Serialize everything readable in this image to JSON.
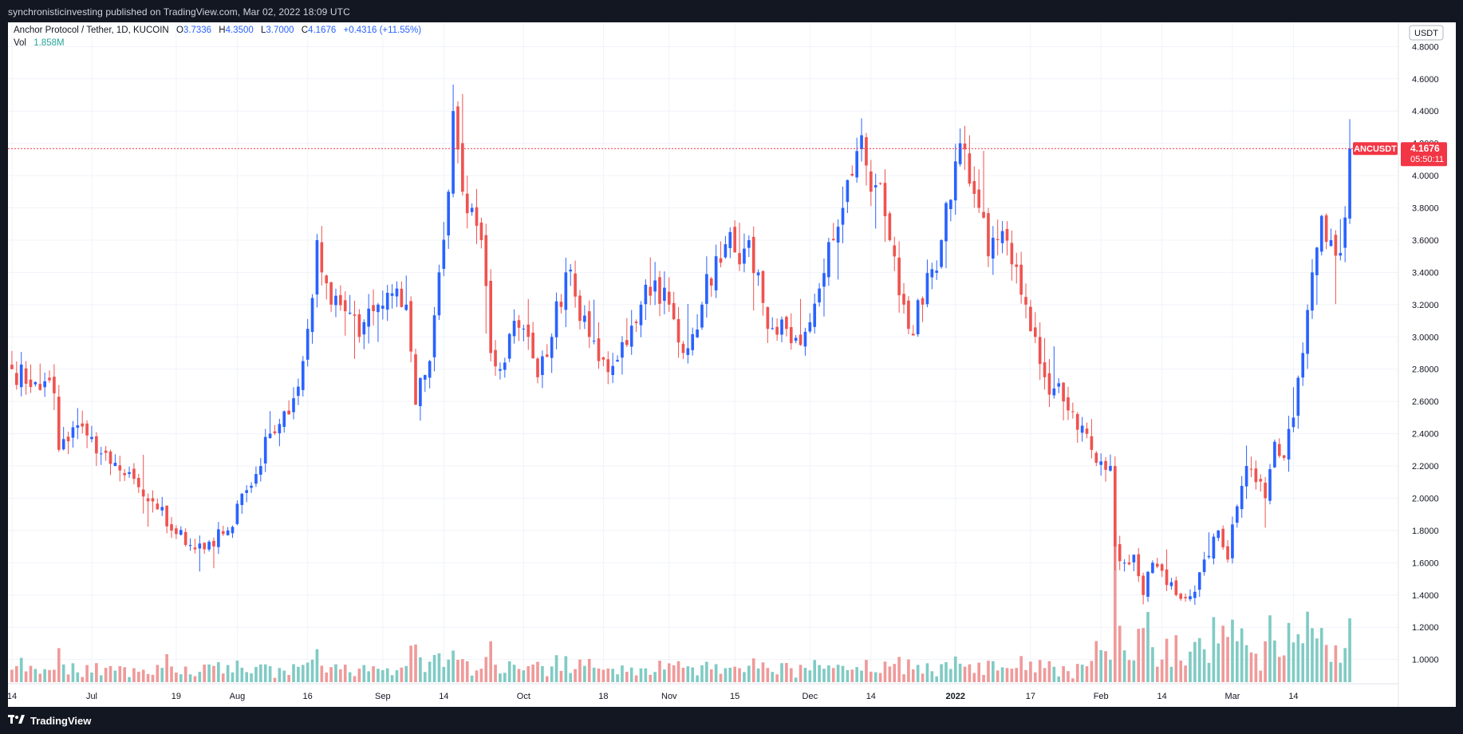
{
  "publisher_line": "synchronisticinvesting published on TradingView.com, Mar 02, 2022 18:09 UTC",
  "brand": "TradingView",
  "colors": {
    "up": "#2962ff",
    "down": "#ef5350",
    "vol_up": "#80cbc4",
    "vol_down": "#ef9a9a",
    "last_line": "#f23645",
    "legend_value": "#2962ff",
    "vol_value": "#26a69a"
  },
  "legend": {
    "symbol": "Anchor Protocol / Tether, 1D, KUCOIN",
    "open_label": "O",
    "open": "3.7336",
    "high_label": "H",
    "high": "4.3500",
    "low_label": "L",
    "low": "3.7000",
    "close_label": "C",
    "close": "4.1676",
    "change": "+0.4316 (+11.55%)",
    "vol_label": "Vol",
    "vol": "1.858M"
  },
  "axis": {
    "currency": "USDT"
  },
  "last_price": {
    "ticker": "ANCUSDT",
    "price": "4.1676",
    "countdown": "05:50:11"
  },
  "chart_data": {
    "type": "candlestick",
    "ticker": "ANCUSDT",
    "exchange": "KUCOIN",
    "interval": "1D",
    "price_axis": {
      "ylim": [
        0.85,
        4.95
      ],
      "ticks": [
        "1.0000",
        "1.2000",
        "1.4000",
        "1.6000",
        "1.8000",
        "2.0000",
        "2.2000",
        "2.4000",
        "2.6000",
        "2.8000",
        "3.0000",
        "3.2000",
        "3.4000",
        "3.6000",
        "3.8000",
        "4.0000",
        "4.2000",
        "4.4000",
        "4.6000",
        "4.8000"
      ]
    },
    "time_axis": {
      "labels": [
        {
          "day": 0,
          "text": "14"
        },
        {
          "day": 17,
          "text": "Jul"
        },
        {
          "day": 35,
          "text": "19"
        },
        {
          "day": 48,
          "text": "Aug"
        },
        {
          "day": 63,
          "text": "16"
        },
        {
          "day": 79,
          "text": "Sep"
        },
        {
          "day": 92,
          "text": "14"
        },
        {
          "day": 109,
          "text": "Oct"
        },
        {
          "day": 126,
          "text": "18"
        },
        {
          "day": 140,
          "text": "Nov"
        },
        {
          "day": 154,
          "text": "15"
        },
        {
          "day": 170,
          "text": "Dec"
        },
        {
          "day": 183,
          "text": "14"
        },
        {
          "day": 201,
          "text": "2022"
        },
        {
          "day": 217,
          "text": "17"
        },
        {
          "day": 232,
          "text": "Feb"
        },
        {
          "day": 245,
          "text": "14"
        },
        {
          "day": 260,
          "text": "Mar"
        },
        {
          "day": 273,
          "text": "14"
        }
      ]
    },
    "close_anchors": [
      [
        0,
        2.8
      ],
      [
        5,
        2.72
      ],
      [
        9,
        2.65
      ],
      [
        10,
        2.3
      ],
      [
        13,
        2.44
      ],
      [
        17,
        2.38
      ],
      [
        22,
        2.22
      ],
      [
        26,
        2.12
      ],
      [
        30,
        1.98
      ],
      [
        34,
        1.8
      ],
      [
        38,
        1.71
      ],
      [
        42,
        1.73
      ],
      [
        46,
        1.8
      ],
      [
        50,
        2.05
      ],
      [
        52,
        2.15
      ],
      [
        54,
        2.38
      ],
      [
        57,
        2.46
      ],
      [
        60,
        2.62
      ],
      [
        62,
        2.85
      ],
      [
        63,
        3.05
      ],
      [
        65,
        3.6
      ],
      [
        68,
        3.2
      ],
      [
        72,
        3.15
      ],
      [
        74,
        3.0
      ],
      [
        78,
        3.2
      ],
      [
        82,
        3.3
      ],
      [
        84,
        3.2
      ],
      [
        86,
        2.58
      ],
      [
        89,
        2.85
      ],
      [
        91,
        3.4
      ],
      [
        93,
        3.9
      ],
      [
        94,
        4.4
      ],
      [
        96,
        3.9
      ],
      [
        98,
        3.8
      ],
      [
        100,
        3.6
      ],
      [
        102,
        2.9
      ],
      [
        104,
        2.8
      ],
      [
        107,
        3.1
      ],
      [
        110,
        3.0
      ],
      [
        112,
        2.75
      ],
      [
        115,
        3.0
      ],
      [
        118,
        3.4
      ],
      [
        120,
        3.25
      ],
      [
        123,
        3.0
      ],
      [
        125,
        2.85
      ],
      [
        128,
        2.82
      ],
      [
        131,
        2.95
      ],
      [
        134,
        3.2
      ],
      [
        137,
        3.35
      ],
      [
        140,
        3.2
      ],
      [
        143,
        2.9
      ],
      [
        147,
        3.2
      ],
      [
        150,
        3.5
      ],
      [
        153,
        3.65
      ],
      [
        155,
        3.45
      ],
      [
        157,
        3.6
      ],
      [
        159,
        3.4
      ],
      [
        161,
        3.05
      ],
      [
        165,
        3.05
      ],
      [
        168,
        2.95
      ],
      [
        172,
        3.3
      ],
      [
        175,
        3.6
      ],
      [
        177,
        3.8
      ],
      [
        179,
        4.0
      ],
      [
        181,
        4.25
      ],
      [
        183,
        3.9
      ],
      [
        185,
        3.95
      ],
      [
        187,
        3.6
      ],
      [
        190,
        3.2
      ],
      [
        191,
        3.05
      ],
      [
        194,
        3.2
      ],
      [
        196,
        3.42
      ],
      [
        198,
        3.6
      ],
      [
        200,
        3.85
      ],
      [
        202,
        4.2
      ],
      [
        204,
        3.95
      ],
      [
        206,
        3.8
      ],
      [
        208,
        3.5
      ],
      [
        210,
        3.6
      ],
      [
        213,
        3.45
      ],
      [
        216,
        3.2
      ],
      [
        218,
        3.0
      ],
      [
        220,
        2.75
      ],
      [
        224,
        2.6
      ],
      [
        228,
        2.45
      ],
      [
        231,
        2.22
      ],
      [
        234,
        2.2
      ],
      [
        235,
        1.7
      ],
      [
        237,
        1.6
      ],
      [
        239,
        1.65
      ],
      [
        241,
        1.4
      ],
      [
        243,
        1.6
      ],
      [
        245,
        1.55
      ],
      [
        248,
        1.4
      ],
      [
        250,
        1.38
      ],
      [
        252,
        1.42
      ],
      [
        254,
        1.62
      ],
      [
        257,
        1.8
      ],
      [
        259,
        1.62
      ],
      [
        261,
        1.95
      ],
      [
        263,
        2.2
      ],
      [
        265,
        2.1
      ],
      [
        267,
        2.0
      ],
      [
        269,
        2.35
      ],
      [
        271,
        2.25
      ],
      [
        273,
        2.5
      ],
      [
        275,
        2.9
      ],
      [
        277,
        3.4
      ],
      [
        279,
        3.75
      ],
      [
        281,
        3.6
      ],
      [
        283,
        3.52
      ],
      [
        284,
        3.74
      ],
      [
        285,
        4.17
      ]
    ],
    "volume_note": "Volume histogram at bottom, last bar 1.858M",
    "last": {
      "open": 3.7336,
      "high": 4.35,
      "low": 3.7,
      "close": 4.1676
    }
  }
}
